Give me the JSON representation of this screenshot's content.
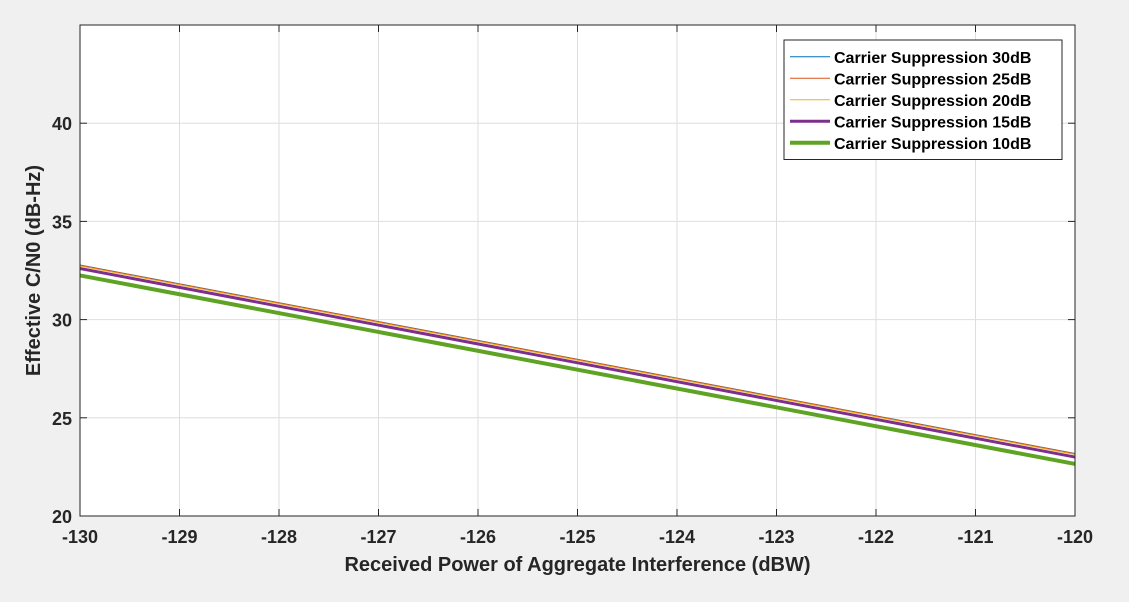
{
  "chart_data": {
    "type": "line",
    "title": "",
    "xlabel": "Received Power of Aggregate Interference (dBW)",
    "ylabel": "Effective C/N0 (dB-Hz)",
    "xlim": [
      -130,
      -120
    ],
    "ylim": [
      20,
      45
    ],
    "xticks": [
      -130,
      -129,
      -128,
      -127,
      -126,
      -125,
      -124,
      -123,
      -122,
      -121,
      -120
    ],
    "yticks": [
      20,
      25,
      30,
      35,
      40
    ],
    "grid": true,
    "legend_position": "top-right",
    "colors": {
      "background": "#f0f0f0",
      "plot_bg": "#ffffff",
      "grid": "#dedede",
      "axis": "#262626"
    },
    "series": [
      {
        "name": "Carrier Suppression 30dB",
        "color": "#0072bd",
        "line_width": 1,
        "x": [
          -130,
          -120
        ],
        "y": [
          32.78,
          23.18
        ]
      },
      {
        "name": "Carrier Suppression 25dB",
        "color": "#d95319",
        "line_width": 1,
        "x": [
          -130,
          -120
        ],
        "y": [
          32.77,
          23.17
        ]
      },
      {
        "name": "Carrier Suppression 20dB",
        "color": "#edb120",
        "line_width": 1,
        "x": [
          -130,
          -120
        ],
        "y": [
          32.73,
          23.13
        ]
      },
      {
        "name": "Carrier Suppression 15dB",
        "color": "#7e2f8e",
        "line_width": 3,
        "x": [
          -130,
          -120
        ],
        "y": [
          32.6,
          23.0
        ]
      },
      {
        "name": "Carrier Suppression 10dB",
        "color": "#5fa324",
        "line_width": 4,
        "x": [
          -130,
          -120
        ],
        "y": [
          32.25,
          22.65
        ]
      }
    ]
  }
}
